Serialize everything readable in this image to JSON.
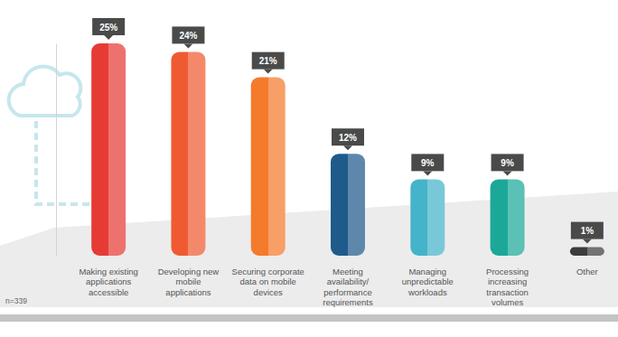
{
  "chart_data": {
    "type": "bar",
    "categories": [
      "Making existing applications accessible",
      "Developing new mobile applications",
      "Securing corporate data on mobile devices",
      "Meeting availability/ performance requirements",
      "Managing unpredictable workloads",
      "Processing increasing transaction volumes",
      "Other"
    ],
    "values": [
      25,
      24,
      21,
      12,
      9,
      9,
      1
    ],
    "value_labels": [
      "25%",
      "24%",
      "21%",
      "12%",
      "9%",
      "9%",
      "1%"
    ],
    "colors": [
      "#e63b35",
      "#f05a32",
      "#f47a2c",
      "#1e5a8a",
      "#45b3c9",
      "#1ba898",
      "#3d3d3d"
    ],
    "ylim": [
      0,
      25
    ],
    "grid": false,
    "data_labels": true,
    "tick_labels": "x",
    "annotations": [
      "n=339"
    ]
  }
}
